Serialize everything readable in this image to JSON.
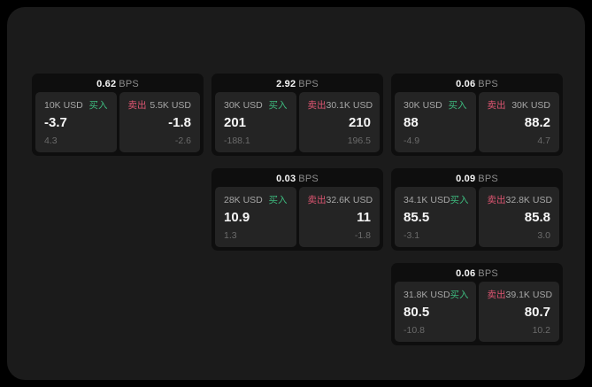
{
  "labels": {
    "bps_unit": "BPS",
    "buy": "买入",
    "sell": "卖出"
  },
  "colors": {
    "buy": "#3dba7e",
    "sell": "#dd5571",
    "panel_bg": "#1b1b1b",
    "card_bg": "#0e0e0e",
    "tile_bg": "#242424"
  },
  "cards": [
    {
      "row": 1,
      "col": 1,
      "bps": "0.62",
      "buy": {
        "size": "10K USD",
        "value": "-3.7",
        "sub": "4.3"
      },
      "sell": {
        "size": "5.5K USD",
        "value": "-1.8",
        "sub": "-2.6"
      }
    },
    {
      "row": 1,
      "col": 2,
      "bps": "2.92",
      "buy": {
        "size": "30K USD",
        "value": "201",
        "sub": "-188.1"
      },
      "sell": {
        "size": "30.1K USD",
        "value": "210",
        "sub": "196.5"
      }
    },
    {
      "row": 1,
      "col": 3,
      "bps": "0.06",
      "buy": {
        "size": "30K USD",
        "value": "88",
        "sub": "-4.9"
      },
      "sell": {
        "size": "30K USD",
        "value": "88.2",
        "sub": "4.7"
      }
    },
    {
      "row": 2,
      "col": 2,
      "bps": "0.03",
      "buy": {
        "size": "28K USD",
        "value": "10.9",
        "sub": "1.3"
      },
      "sell": {
        "size": "32.6K USD",
        "value": "11",
        "sub": "-1.8"
      }
    },
    {
      "row": 2,
      "col": 3,
      "bps": "0.09",
      "buy": {
        "size": "34.1K USD",
        "value": "85.5",
        "sub": "-3.1"
      },
      "sell": {
        "size": "32.8K USD",
        "value": "85.8",
        "sub": "3.0"
      }
    },
    {
      "row": 3,
      "col": 3,
      "bps": "0.06",
      "buy": {
        "size": "31.8K USD",
        "value": "80.5",
        "sub": "-10.8"
      },
      "sell": {
        "size": "39.1K USD",
        "value": "80.7",
        "sub": "10.2"
      }
    }
  ]
}
